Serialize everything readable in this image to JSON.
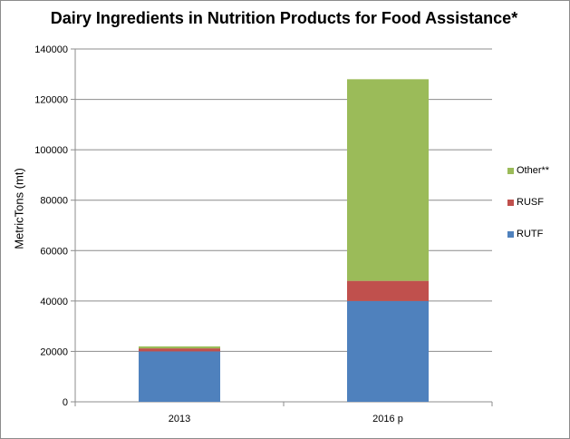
{
  "chart_data": {
    "type": "bar",
    "stacked": true,
    "title": "Dairy Ingredients in Nutrition Products for Food Assistance*",
    "xlabel": "",
    "ylabel": "MetricTons  (mt)",
    "categories": [
      "2013",
      "2016 p"
    ],
    "ylim": [
      0,
      140000
    ],
    "yticks": [
      "0",
      "20000",
      "40000",
      "60000",
      "80000",
      "100000",
      "120000",
      "140000"
    ],
    "grid": true,
    "legend_position": "right",
    "series": [
      {
        "name": "RUTF",
        "values": [
          20000,
          40000
        ],
        "color": "#4f81bd"
      },
      {
        "name": "RUSF",
        "values": [
          1200,
          8000
        ],
        "color": "#c0504d"
      },
      {
        "name": "Other**",
        "values": [
          800,
          80000
        ],
        "color": "#9bbb59"
      }
    ]
  }
}
